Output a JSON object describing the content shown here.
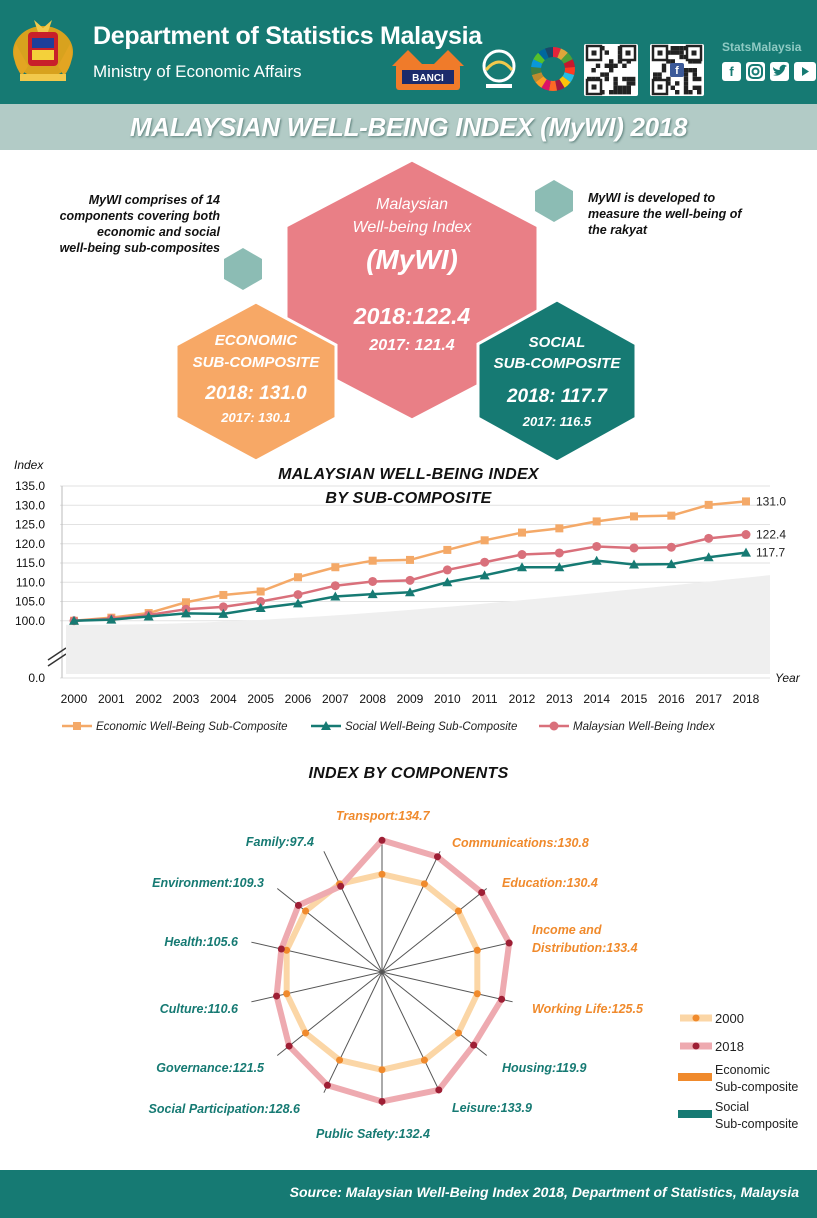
{
  "header": {
    "title": "Department of Statistics Malaysia",
    "subtitle": "Ministry of Economic Affairs",
    "banci_logo": "BANCI",
    "social_label": "StatsMalaysia",
    "icons": [
      "malaysia-crest-icon",
      "banci-logo-icon",
      "census-globe-logo-icon",
      "sdg-wheel-logo-icon",
      "qr-code-icon",
      "qr-code-facebook-icon",
      "facebook-icon",
      "instagram-icon",
      "twitter-icon",
      "youtube-icon"
    ]
  },
  "main_title": "MALAYSIAN WELL-BEING INDEX (MyWI) 2018",
  "notes": {
    "left": [
      "MyWI comprises of 14",
      "components covering both",
      "economic and social",
      "well-being sub-composites"
    ],
    "right": [
      "MyWI is developed to",
      "measure the well-being of",
      "the rakyat"
    ]
  },
  "hexagons": {
    "mywi": {
      "line1": "Malaysian",
      "line2": "Well-being Index",
      "name": "(MyWI)",
      "value2018": "2018:122.4",
      "value2017": "2017: 121.4",
      "color": "#e97f86"
    },
    "economic": {
      "line1": "ECONOMIC",
      "line2": "SUB-COMPOSITE",
      "value2018": "2018: 131.0",
      "value2017": "2017: 130.1",
      "color": "#f7a866"
    },
    "social": {
      "line1": "SOCIAL",
      "line2": "SUB-COMPOSITE",
      "value2018": "2018: 117.7",
      "value2017": "2017: 116.5",
      "color": "#167a73"
    }
  },
  "line_chart_title": [
    "MALAYSIAN WELL-BEING INDEX",
    "BY SUB-COMPOSITE"
  ],
  "radar_title": "INDEX BY COMPONENTS",
  "chart_data": [
    {
      "type": "line",
      "title": "MALAYSIAN WELL-BEING INDEX BY SUB-COMPOSITE",
      "ylabel": "Index",
      "xlabel": "Year",
      "ylim": [
        95,
        135
      ],
      "y_ticks": [
        "135.0",
        "130.0",
        "125.0",
        "120.0",
        "115.0",
        "110.0",
        "105.0",
        "100.0"
      ],
      "y_zero": "0.0",
      "axis_break": true,
      "grid": true,
      "legend_position": "bottom",
      "categories": [
        "2000",
        "2001",
        "2002",
        "2003",
        "2004",
        "2005",
        "2006",
        "2007",
        "2008",
        "2009",
        "2010",
        "2011",
        "2012",
        "2013",
        "2014",
        "2015",
        "2016",
        "2017",
        "2018"
      ],
      "series": [
        {
          "name": "Economic Well-Being Sub-Composite",
          "marker": "square",
          "color": "#f4a968",
          "values": [
            100.0,
            100.8,
            102.0,
            104.8,
            106.7,
            107.6,
            111.3,
            113.9,
            115.6,
            115.8,
            118.4,
            120.9,
            122.9,
            124.0,
            125.8,
            127.1,
            127.3,
            130.1,
            131.0
          ],
          "end_label": "131.0"
        },
        {
          "name": "Social Well-Being Sub-Composite",
          "marker": "triangle",
          "color": "#167a73",
          "values": [
            100.0,
            100.3,
            101.1,
            101.9,
            101.8,
            103.3,
            104.5,
            106.3,
            106.9,
            107.4,
            110.0,
            111.8,
            113.9,
            113.9,
            115.6,
            114.6,
            114.7,
            116.5,
            117.7
          ],
          "end_label": "117.7"
        },
        {
          "name": "Malaysian Well-Being Index",
          "marker": "circle",
          "color": "#d9707b",
          "values": [
            100.0,
            100.5,
            101.5,
            103.0,
            103.6,
            105.0,
            106.8,
            109.1,
            110.2,
            110.5,
            113.2,
            115.2,
            117.2,
            117.6,
            119.3,
            118.9,
            119.1,
            121.4,
            122.4
          ],
          "end_label": "122.4"
        }
      ]
    },
    {
      "type": "radar",
      "title": "INDEX BY COMPONENTS",
      "legend_position": "right",
      "components": [
        {
          "label": "Transport:134.7",
          "name": "Transport",
          "group": "economic",
          "v2000": 100,
          "v2018": 134.7
        },
        {
          "label": "Communications:130.8",
          "name": "Communications",
          "group": "economic",
          "v2000": 100,
          "v2018": 130.8
        },
        {
          "label": "Education:130.4",
          "name": "Education",
          "group": "economic",
          "v2000": 100,
          "v2018": 130.4
        },
        {
          "label1": "Income and",
          "label": "Distribution:133.4",
          "name": "Income and Distribution",
          "group": "economic",
          "v2000": 100,
          "v2018": 133.4
        },
        {
          "label": "Working Life:125.5",
          "name": "Working Life",
          "group": "economic",
          "v2000": 100,
          "v2018": 125.5
        },
        {
          "label": "Housing:119.9",
          "name": "Housing",
          "group": "social",
          "v2000": 100,
          "v2018": 119.9
        },
        {
          "label": "Leisure:133.9",
          "name": "Leisure",
          "group": "social",
          "v2000": 100,
          "v2018": 133.9
        },
        {
          "label": "Public Safety:132.4",
          "name": "Public Safety",
          "group": "social",
          "v2000": 100,
          "v2018": 132.4
        },
        {
          "label": "Social Participation:128.6",
          "name": "Social Participation",
          "group": "social",
          "v2000": 100,
          "v2018": 128.6
        },
        {
          "label": "Governance:121.5",
          "name": "Governance",
          "group": "social",
          "v2000": 100,
          "v2018": 121.5
        },
        {
          "label": "Culture:110.6",
          "name": "Culture",
          "group": "social",
          "v2000": 100,
          "v2018": 110.6
        },
        {
          "label": "Health:105.6",
          "name": "Health",
          "group": "social",
          "v2000": 100,
          "v2018": 105.6
        },
        {
          "label": "Environment:109.3",
          "name": "Environment",
          "group": "social",
          "v2000": 100,
          "v2018": 109.3
        },
        {
          "label": "Family:97.4",
          "name": "Family",
          "group": "social",
          "v2000": 100,
          "v2018": 97.4
        }
      ],
      "legend": [
        {
          "label": "2000",
          "color": "#fbd6a6",
          "marker": "#f08a2c"
        },
        {
          "label": "2018",
          "color": "#eeaab0",
          "marker": "#9e1f35"
        },
        {
          "label1": "Economic",
          "label2": "Sub-composite",
          "color": "#f08a2c"
        },
        {
          "label1": "Social",
          "label2": "Sub-composite",
          "color": "#167a73"
        }
      ],
      "economic_color": "#f08a2c",
      "social_color": "#167a73"
    }
  ],
  "footer": {
    "source": "Source: Malaysian Well-Being Index 2018, Department of Statistics, Malaysia"
  }
}
